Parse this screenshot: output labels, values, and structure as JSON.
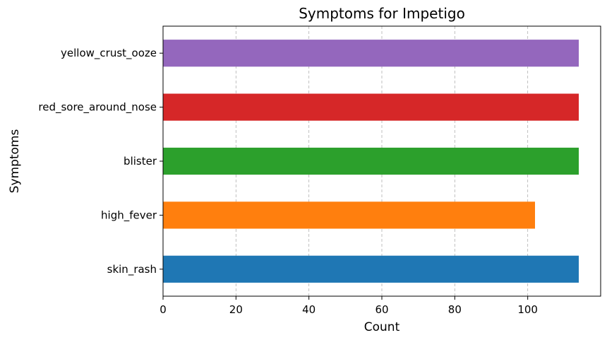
{
  "chart_data": {
    "type": "bar",
    "orientation": "horizontal",
    "title": "Symptoms for Impetigo",
    "xlabel": "Count",
    "ylabel": "Symptoms",
    "categories": [
      "skin_rash",
      "high_fever",
      "blister",
      "red_sore_around_nose",
      "yellow_crust_ooze"
    ],
    "values": [
      114,
      102,
      114,
      114,
      114
    ],
    "colors": [
      "#1f77b4",
      "#ff7f0e",
      "#2ca02c",
      "#d62728",
      "#9467bd"
    ],
    "xlim": [
      0,
      120
    ],
    "xticks": [
      0,
      20,
      40,
      60,
      80,
      100
    ],
    "grid": "x-dashed",
    "legend": "none"
  }
}
